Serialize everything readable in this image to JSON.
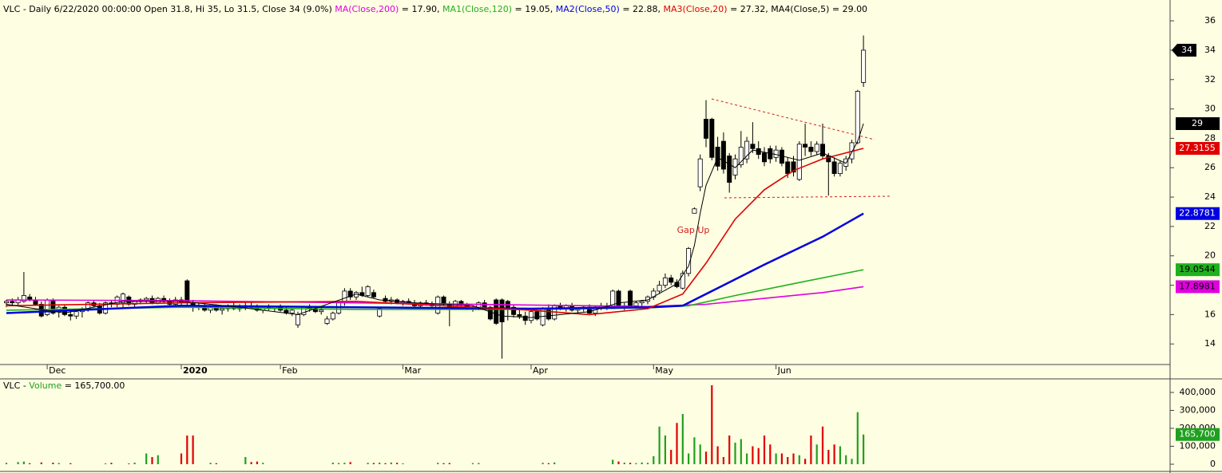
{
  "chart_data": [
    {
      "type": "candlestick",
      "header": "VLC - Daily 6/22/2020 00:00:00 Open 31.8, Hi 35, Lo 31.5, Close 34 (9.0%) ",
      "annotation": "Gap Up",
      "up_color": "#ffffff",
      "down_color": "#000000",
      "ylim": [
        12.6,
        37.2
      ],
      "yticks": [
        14,
        16,
        18,
        20,
        22,
        24,
        26,
        28,
        30,
        32,
        34,
        36
      ],
      "xticks": [
        {
          "value": 7,
          "label": "Dec"
        },
        {
          "value": 30,
          "label": "2020"
        },
        {
          "value": 47,
          "label": "Feb"
        },
        {
          "value": 68,
          "label": "Mar"
        },
        {
          "value": 90,
          "label": "Apr"
        },
        {
          "value": 111,
          "label": "May"
        },
        {
          "value": 132,
          "label": "Jun"
        }
      ],
      "ohlc": [
        [
          16.8,
          17.0,
          16.5,
          16.9
        ],
        [
          16.9,
          17.1,
          16.6,
          16.8
        ],
        [
          16.8,
          17.2,
          16.6,
          17.0
        ],
        [
          16.9,
          18.9,
          16.8,
          17.3
        ],
        [
          17.2,
          17.4,
          16.9,
          17.0
        ],
        [
          17.0,
          17.2,
          16.6,
          16.7
        ],
        [
          16.7,
          16.9,
          15.8,
          15.9
        ],
        [
          16.0,
          17.1,
          15.9,
          17.0
        ],
        [
          17.0,
          17.1,
          16.0,
          16.1
        ],
        [
          16.2,
          16.6,
          15.8,
          16.5
        ],
        [
          16.5,
          16.7,
          15.9,
          16.0
        ],
        [
          16.0,
          16.4,
          15.6,
          15.9
        ],
        [
          15.9,
          16.3,
          15.7,
          16.2
        ],
        [
          16.2,
          16.5,
          15.8,
          16.4
        ],
        [
          16.4,
          16.9,
          16.2,
          16.8
        ],
        [
          16.8,
          17.0,
          16.5,
          16.6
        ],
        [
          16.6,
          16.8,
          16.0,
          16.1
        ],
        [
          16.1,
          16.9,
          16.0,
          16.8
        ],
        [
          16.8,
          17.0,
          16.5,
          16.7
        ],
        [
          16.7,
          17.3,
          16.5,
          17.2
        ],
        [
          16.8,
          17.5,
          16.5,
          17.4
        ],
        [
          17.2,
          17.3,
          16.6,
          16.7
        ],
        [
          16.7,
          17.0,
          16.5,
          16.9
        ],
        [
          16.9,
          17.1,
          16.7,
          17.0
        ],
        [
          17.0,
          17.2,
          16.8,
          17.1
        ],
        [
          17.1,
          17.3,
          16.7,
          16.8
        ],
        [
          16.8,
          17.2,
          16.7,
          17.1
        ],
        [
          17.1,
          17.3,
          16.8,
          16.9
        ],
        [
          16.9,
          17.1,
          16.6,
          16.7
        ],
        [
          16.7,
          17.2,
          16.5,
          17.0
        ],
        [
          17.0,
          17.2,
          16.6,
          16.8
        ],
        [
          18.3,
          18.4,
          16.6,
          16.8
        ],
        [
          16.8,
          17.0,
          16.2,
          16.5
        ],
        [
          16.5,
          16.8,
          16.3,
          16.6
        ],
        [
          16.6,
          16.8,
          16.2,
          16.3
        ],
        [
          16.3,
          16.6,
          16.1,
          16.5
        ],
        [
          16.5,
          16.7,
          16.2,
          16.3
        ],
        [
          16.3,
          16.5,
          16.0,
          16.4
        ],
        [
          16.4,
          16.7,
          16.2,
          16.6
        ],
        [
          16.6,
          16.8,
          16.3,
          16.4
        ],
        [
          16.4,
          16.7,
          16.2,
          16.5
        ],
        [
          16.5,
          16.8,
          16.3,
          16.6
        ],
        [
          16.6,
          16.9,
          16.4,
          16.5
        ],
        [
          16.5,
          16.7,
          16.2,
          16.3
        ],
        [
          16.3,
          16.6,
          16.1,
          16.5
        ],
        [
          16.5,
          16.7,
          16.3,
          16.4
        ],
        [
          16.4,
          16.6,
          16.2,
          16.5
        ],
        [
          16.5,
          16.7,
          16.2,
          16.3
        ],
        [
          16.3,
          16.5,
          16.0,
          16.1
        ],
        [
          16.1,
          16.4,
          15.9,
          16.3
        ],
        [
          15.3,
          16.2,
          15.1,
          16.0
        ],
        [
          16.0,
          16.6,
          15.9,
          16.5
        ],
        [
          16.5,
          16.7,
          16.2,
          16.4
        ],
        [
          16.4,
          16.6,
          16.1,
          16.2
        ],
        [
          16.2,
          16.5,
          16.0,
          16.3
        ],
        [
          15.4,
          15.9,
          15.3,
          15.7
        ],
        [
          15.7,
          16.2,
          15.6,
          16.1
        ],
        [
          16.1,
          16.9,
          16.0,
          16.8
        ],
        [
          16.8,
          17.8,
          16.6,
          17.6
        ],
        [
          17.6,
          17.8,
          17.0,
          17.2
        ],
        [
          17.2,
          17.6,
          17.0,
          17.5
        ],
        [
          17.5,
          17.9,
          17.2,
          17.3
        ],
        [
          17.3,
          18.0,
          17.2,
          17.9
        ],
        [
          17.5,
          17.7,
          17.1,
          17.2
        ],
        [
          15.9,
          16.5,
          15.8,
          16.4
        ],
        [
          17.1,
          17.3,
          16.8,
          16.9
        ],
        [
          16.9,
          17.2,
          16.7,
          17.0
        ],
        [
          17.0,
          17.1,
          16.7,
          16.8
        ],
        [
          16.8,
          17.0,
          16.6,
          16.9
        ],
        [
          16.9,
          17.1,
          16.7,
          16.8
        ],
        [
          16.8,
          17.0,
          16.5,
          16.6
        ],
        [
          16.6,
          16.9,
          16.4,
          16.8
        ],
        [
          16.8,
          17.0,
          16.6,
          16.7
        ],
        [
          16.7,
          16.9,
          16.5,
          16.6
        ],
        [
          16.1,
          17.3,
          16.0,
          17.2
        ],
        [
          17.2,
          17.3,
          16.6,
          16.7
        ],
        [
          16.7,
          16.9,
          15.2,
          16.5
        ],
        [
          16.5,
          17.0,
          16.4,
          16.9
        ],
        [
          16.9,
          17.0,
          16.6,
          16.7
        ],
        [
          16.7,
          16.8,
          16.3,
          16.4
        ],
        [
          16.4,
          16.6,
          16.2,
          16.5
        ],
        [
          16.5,
          16.9,
          16.3,
          16.8
        ],
        [
          16.8,
          17.0,
          16.4,
          16.5
        ],
        [
          16.5,
          16.6,
          15.6,
          15.7
        ],
        [
          17.0,
          17.1,
          15.3,
          15.4
        ],
        [
          17.0,
          17.1,
          13.0,
          15.5
        ],
        [
          16.9,
          17.0,
          15.6,
          16.5
        ],
        [
          16.5,
          16.7,
          15.8,
          16.0
        ],
        [
          16.0,
          16.3,
          15.7,
          15.9
        ],
        [
          15.9,
          16.2,
          15.3,
          15.6
        ],
        [
          15.6,
          16.3,
          15.4,
          16.2
        ],
        [
          16.2,
          16.4,
          15.6,
          15.7
        ],
        [
          15.3,
          16.5,
          15.2,
          16.4
        ],
        [
          16.4,
          16.7,
          15.6,
          15.7
        ],
        [
          15.7,
          16.7,
          15.6,
          16.6
        ],
        [
          16.6,
          16.8,
          16.3,
          16.4
        ],
        [
          16.4,
          16.7,
          16.2,
          16.6
        ],
        [
          16.6,
          16.8,
          16.2,
          16.3
        ],
        [
          16.3,
          16.5,
          16.1,
          16.4
        ],
        [
          16.4,
          16.6,
          16.2,
          16.5
        ],
        [
          16.5,
          16.7,
          16.0,
          16.1
        ],
        [
          16.1,
          16.6,
          15.9,
          16.5
        ],
        [
          16.5,
          16.8,
          16.3,
          16.6
        ],
        [
          16.6,
          16.8,
          16.3,
          16.4
        ],
        [
          16.4,
          17.7,
          16.4,
          17.6
        ],
        [
          17.6,
          17.7,
          16.4,
          16.5
        ],
        [
          16.5,
          16.8,
          16.3,
          16.6
        ],
        [
          17.6,
          17.7,
          16.5,
          16.6
        ],
        [
          16.6,
          16.9,
          16.5,
          16.8
        ],
        [
          16.8,
          17.0,
          16.6,
          16.9
        ],
        [
          16.9,
          17.3,
          16.7,
          17.2
        ],
        [
          17.2,
          17.8,
          17.0,
          17.6
        ],
        [
          17.6,
          18.3,
          17.4,
          18.0
        ],
        [
          18.0,
          18.8,
          17.8,
          18.5
        ],
        [
          18.5,
          18.7,
          18.0,
          18.2
        ],
        [
          18.2,
          18.4,
          17.8,
          17.9
        ],
        [
          17.8,
          19.0,
          17.7,
          18.8
        ],
        [
          18.8,
          20.6,
          18.6,
          20.5
        ],
        [
          22.9,
          23.3,
          22.9,
          23.2
        ],
        [
          24.7,
          26.9,
          24.4,
          26.6
        ],
        [
          29.3,
          30.6,
          27.4,
          28.0
        ],
        [
          29.3,
          29.4,
          26.5,
          26.7
        ],
        [
          27.4,
          28.1,
          25.8,
          26.1
        ],
        [
          27.8,
          28.4,
          25.6,
          25.9
        ],
        [
          26.8,
          27.0,
          24.3,
          25.0
        ],
        [
          25.5,
          26.9,
          25.2,
          26.6
        ],
        [
          26.2,
          28.5,
          26.0,
          27.4
        ],
        [
          26.6,
          28.1,
          26.3,
          27.8
        ],
        [
          27.6,
          29.1,
          27.0,
          27.3
        ],
        [
          27.3,
          27.8,
          26.6,
          26.9
        ],
        [
          27.0,
          27.4,
          26.1,
          26.4
        ],
        [
          27.3,
          27.5,
          26.3,
          26.6
        ],
        [
          26.7,
          27.5,
          26.4,
          27.2
        ],
        [
          27.2,
          27.4,
          26.1,
          26.3
        ],
        [
          26.4,
          26.7,
          25.3,
          25.6
        ],
        [
          26.4,
          26.8,
          25.4,
          25.7
        ],
        [
          25.2,
          27.8,
          25.1,
          27.6
        ],
        [
          27.6,
          29.0,
          26.8,
          27.4
        ],
        [
          27.4,
          27.8,
          26.8,
          27.1
        ],
        [
          27.1,
          27.8,
          26.9,
          27.6
        ],
        [
          27.6,
          29.0,
          26.6,
          26.8
        ],
        [
          26.8,
          27.0,
          24.1,
          26.4
        ],
        [
          26.4,
          26.7,
          25.4,
          25.6
        ],
        [
          25.6,
          26.5,
          25.4,
          26.3
        ],
        [
          26.1,
          26.8,
          25.8,
          26.6
        ],
        [
          26.6,
          27.9,
          26.3,
          27.7
        ],
        [
          27.7,
          31.3,
          27.6,
          31.2
        ],
        [
          31.8,
          35.0,
          31.5,
          34.0
        ]
      ],
      "series": [
        {
          "name": "MA(Close,200)",
          "color": "#e000e0",
          "header_text": " = 17.90, ",
          "x": [
            0,
            30,
            60,
            90,
            110,
            120,
            130,
            140,
            147
          ],
          "values": [
            17.0,
            16.95,
            16.8,
            16.65,
            16.55,
            16.7,
            17.1,
            17.5,
            17.8981
          ]
        },
        {
          "name": "MA1(Close,120)",
          "color": "#20b020",
          "header_text": " = 19.05, ",
          "x": [
            0,
            30,
            60,
            90,
            110,
            117,
            125,
            135,
            147
          ],
          "values": [
            16.3,
            16.5,
            16.35,
            16.35,
            16.45,
            16.6,
            17.3,
            18.1,
            19.0544
          ]
        },
        {
          "name": "MA2(Close,50)",
          "color": "#0000e0",
          "header_text": " = 22.88, ",
          "x": [
            0,
            30,
            60,
            90,
            110,
            116,
            122,
            130,
            140,
            147
          ],
          "values": [
            16.1,
            16.6,
            16.5,
            16.4,
            16.5,
            16.6,
            17.8,
            19.4,
            21.3,
            22.8781
          ]
        },
        {
          "name": "MA3(Close,20)",
          "color": "#e00000",
          "header_text": " = 27.32, ",
          "x": [
            0,
            30,
            60,
            90,
            100,
            110,
            116,
            120,
            125,
            130,
            135,
            140,
            147
          ],
          "values": [
            16.6,
            16.8,
            16.9,
            16.3,
            16.0,
            16.4,
            17.4,
            19.5,
            22.5,
            24.5,
            25.8,
            26.6,
            27.3155
          ]
        },
        {
          "name": "MA4(Close,5)",
          "color": "#000000",
          "header_text": " = 29.00",
          "x": [
            0,
            10,
            20,
            30,
            40,
            50,
            60,
            64,
            70,
            80,
            85,
            90,
            100,
            105,
            110,
            115,
            117,
            118,
            119,
            120,
            122,
            125,
            128,
            132,
            136,
            140,
            144,
            146,
            147
          ],
          "values": [
            16.7,
            16.1,
            16.9,
            16.9,
            16.5,
            16.0,
            17.4,
            17.0,
            16.8,
            16.6,
            15.9,
            15.8,
            16.2,
            16.8,
            17.0,
            18.1,
            19.3,
            20.7,
            22.9,
            24.8,
            26.7,
            26.0,
            27.2,
            26.9,
            26.5,
            27.0,
            26.3,
            27.8,
            29
          ]
        }
      ]
    },
    {
      "type": "bar",
      "header": [
        {
          "text": "VLC - ",
          "color": "#000000"
        },
        {
          "text": "Volume",
          "color": "#20a020"
        },
        {
          "text": " = 165,700.00",
          "color": "#000000"
        }
      ],
      "up_color": "#20a020",
      "down_color": "#e00000",
      "ylim": [
        0,
        440000
      ],
      "yticks": [
        0,
        {
          "value": 100000,
          "label": "100,000"
        },
        {
          "value": 200000,
          "label": "200,000"
        },
        {
          "value": 300000,
          "label": "300,000"
        },
        {
          "value": 400000,
          "label": "400,000"
        }
      ],
      "last_label": "165,700",
      "values": [
        8000,
        0,
        12000,
        15000,
        6000,
        0,
        10000,
        0,
        9000,
        7000,
        0,
        6000,
        0,
        0,
        0,
        0,
        0,
        5000,
        8000,
        0,
        0,
        4000,
        9000,
        0,
        60000,
        40000,
        50000,
        0,
        0,
        0,
        60000,
        160000,
        160000,
        0,
        0,
        8000,
        6000,
        0,
        0,
        0,
        0,
        40000,
        12000,
        15000,
        8000,
        0,
        0,
        0,
        0,
        0,
        0,
        0,
        0,
        0,
        0,
        0,
        9000,
        7000,
        8000,
        12000,
        0,
        0,
        8000,
        7000,
        9000,
        6000,
        10000,
        8000,
        5000,
        0,
        0,
        0,
        0,
        0,
        8000,
        6000,
        7000,
        0,
        0,
        0,
        6000,
        7000,
        0,
        0,
        0,
        0,
        0,
        0,
        0,
        0,
        0,
        0,
        8000,
        6000,
        10000,
        0,
        0,
        0,
        0,
        0,
        0,
        0,
        0,
        0,
        25000,
        15000,
        9000,
        8000,
        6000,
        10000,
        8000,
        45000,
        210000,
        160000,
        80000,
        230000,
        280000,
        60000,
        150000,
        110000,
        70000,
        440000,
        100000,
        40000,
        160000,
        120000,
        140000,
        60000,
        100000,
        90000,
        160000,
        110000,
        60000,
        60000,
        40000,
        60000,
        50000,
        30000,
        160000,
        110000,
        210000,
        80000,
        110000,
        100000,
        50000,
        30000,
        290000,
        165700
      ]
    }
  ]
}
